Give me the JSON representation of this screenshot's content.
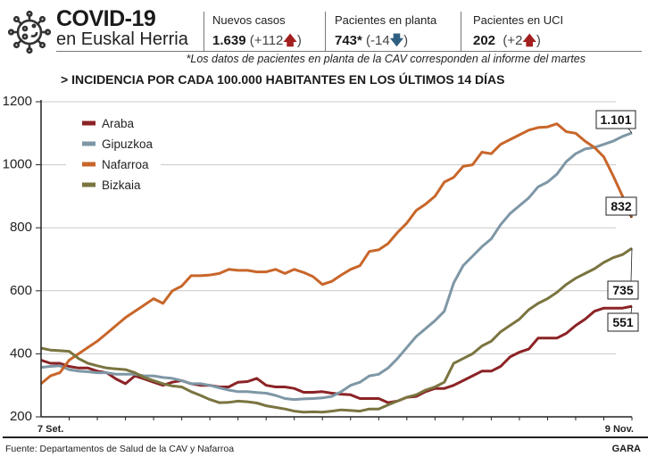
{
  "header": {
    "icon": "virus-icon",
    "title": "COVID-19",
    "subtitle": "en Euskal Herria",
    "stats": [
      {
        "label": "Nuevos casos",
        "value": "1.639",
        "delta": "(+112",
        "delta_close": ")",
        "trend": "up"
      },
      {
        "label": "Pacientes en planta",
        "value": "743*",
        "delta": "(-14",
        "delta_close": ")",
        "trend": "down"
      },
      {
        "label": "Pacientes en UCI",
        "value": "202",
        "delta": "(+2",
        "delta_close": ")",
        "trend": "up"
      }
    ],
    "note": "*Los datos de pacientes en planta de la CAV corresponden al informe del martes"
  },
  "footer": {
    "source": "Fuente: Departamentos de Salud de la CAV y Nafarroa",
    "brand": "GARA"
  },
  "colors": {
    "up": "#a31f1f",
    "down": "#2f5f80"
  },
  "chart_data": {
    "type": "line",
    "title": "> INCIDENCIA POR CADA 100.000 HABITANTES EN LOS ÚLTIMOS 14 DÍAS",
    "x_start_label": "7 Set.",
    "x_end_label": "9 Nov.",
    "x_range": [
      "2020-09-07",
      "2020-11-09"
    ],
    "ylim": [
      200,
      1200
    ],
    "yticks": [
      200,
      400,
      600,
      800,
      1000,
      1200
    ],
    "ytick_labels": [
      "200",
      "400",
      "600",
      "800",
      "1000",
      "1200"
    ],
    "grid": true,
    "legend_placement": "top-left",
    "series": [
      {
        "name": "Araba",
        "color": "#8b2326",
        "end_label": "551",
        "values": [
          380,
          370,
          370,
          360,
          355,
          355,
          345,
          340,
          320,
          305,
          330,
          320,
          310,
          300,
          310,
          315,
          305,
          300,
          300,
          295,
          295,
          310,
          312,
          322,
          300,
          295,
          295,
          290,
          278,
          278,
          280,
          275,
          272,
          270,
          258,
          258,
          258,
          245,
          250,
          262,
          265,
          280,
          290,
          290,
          300,
          315,
          330,
          345,
          345,
          360,
          390,
          405,
          415,
          450,
          450,
          450,
          465,
          490,
          510,
          535,
          545,
          545,
          545,
          551
        ]
      },
      {
        "name": "Gipuzkoa",
        "color": "#7e97a6",
        "end_label": "1.101",
        "values": [
          357,
          360,
          362,
          350,
          345,
          343,
          340,
          340,
          335,
          335,
          335,
          330,
          330,
          325,
          322,
          315,
          305,
          305,
          300,
          292,
          285,
          280,
          280,
          277,
          275,
          268,
          258,
          255,
          257,
          258,
          260,
          265,
          280,
          300,
          310,
          330,
          335,
          355,
          385,
          420,
          455,
          480,
          505,
          535,
          625,
          680,
          710,
          740,
          765,
          810,
          845,
          870,
          895,
          930,
          945,
          970,
          1010,
          1035,
          1050,
          1055,
          1065,
          1075,
          1090,
          1101
        ]
      },
      {
        "name": "Nafarroa",
        "color": "#c8662a",
        "end_label": "832",
        "values": [
          305,
          330,
          340,
          380,
          400,
          420,
          440,
          465,
          490,
          515,
          535,
          555,
          575,
          560,
          600,
          615,
          648,
          648,
          650,
          655,
          668,
          665,
          665,
          660,
          660,
          668,
          655,
          668,
          658,
          645,
          620,
          630,
          650,
          668,
          680,
          725,
          730,
          750,
          785,
          815,
          855,
          875,
          900,
          945,
          960,
          995,
          1000,
          1040,
          1035,
          1065,
          1080,
          1095,
          1110,
          1118,
          1120,
          1130,
          1105,
          1100,
          1075,
          1055,
          1025,
          965,
          900,
          832
        ]
      },
      {
        "name": "Bizkaia",
        "color": "#7a7440",
        "end_label": "735",
        "values": [
          418,
          412,
          410,
          408,
          385,
          370,
          362,
          355,
          352,
          350,
          340,
          325,
          315,
          305,
          298,
          295,
          280,
          268,
          255,
          245,
          246,
          250,
          248,
          244,
          235,
          230,
          225,
          218,
          215,
          216,
          215,
          218,
          222,
          220,
          218,
          225,
          225,
          238,
          250,
          262,
          270,
          285,
          295,
          310,
          370,
          385,
          400,
          425,
          440,
          470,
          490,
          510,
          540,
          560,
          575,
          595,
          620,
          640,
          655,
          670,
          690,
          705,
          715,
          735
        ]
      }
    ]
  }
}
